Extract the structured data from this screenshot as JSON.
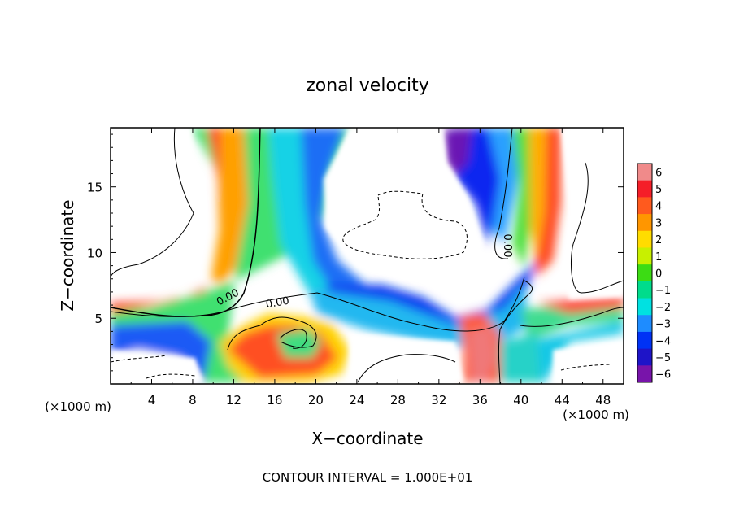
{
  "chart_data": {
    "type": "heatmap",
    "title": "zonal velocity",
    "xlabel": "X−coordinate",
    "ylabel": "Z−coordinate",
    "x_unit_left": "(×1000 m)",
    "x_unit_right": "(×1000 m)",
    "footer": "CONTOUR INTERVAL = 1.000E+01",
    "xlim": [
      0,
      50
    ],
    "ylim": [
      0,
      19.5
    ],
    "x_ticks": [
      4,
      8,
      12,
      16,
      20,
      24,
      28,
      32,
      36,
      40,
      44,
      48
    ],
    "y_ticks": [
      5,
      10,
      15
    ],
    "colorbar": {
      "levels": [
        6,
        5,
        4,
        3,
        2,
        1,
        0,
        "−1",
        "−2",
        "−3",
        "−4",
        "−5",
        "−6"
      ],
      "colors": [
        "#f08a8a",
        "#f51e28",
        "#ff5a1e",
        "#ff9600",
        "#ffdc00",
        "#c8f000",
        "#3cdc14",
        "#00dc8c",
        "#00e1e1",
        "#1e8cff",
        "#0032f5",
        "#1e14c8",
        "#7814aa"
      ]
    },
    "contour_labels": [
      "0.00",
      "0.00",
      "0.00"
    ]
  }
}
